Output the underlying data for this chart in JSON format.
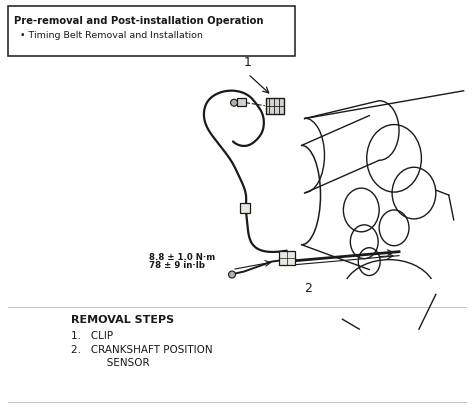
{
  "bg_color": "#ffffff",
  "line_color": "#1a1a1a",
  "box_bg": "#ffffff",
  "title_bold": "Pre-removal and Post-installation Operation",
  "bullet_text": "Timing Belt Removal and Installation",
  "removal_steps_title": "REMOVAL STEPS",
  "step1": "CLIP",
  "step2_line1": "CRANKSHAFT POSITION",
  "step2_line2": "SENSOR",
  "torque_line1": "8.8 ± 1.0 N·m",
  "torque_line2": "78 ± 9 in·lb",
  "label1": "1",
  "label2": "2",
  "figw": 4.74,
  "figh": 4.09,
  "dpi": 100
}
